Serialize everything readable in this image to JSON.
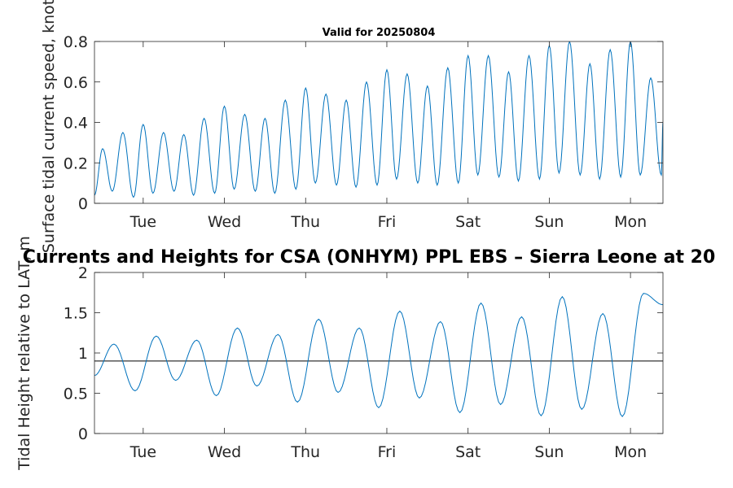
{
  "chart_data": [
    {
      "type": "line",
      "title": "Valid for 20250804",
      "ylabel": "Surface tidal current speed, knots",
      "ylim": [
        0,
        0.8
      ],
      "yticks": [
        0,
        0.2,
        0.4,
        0.6,
        0.8
      ],
      "ytick_labels": [
        "0",
        "0.2",
        "0.4",
        "0.6",
        "0.8"
      ],
      "xlim_days": [
        0,
        7
      ],
      "xtick_labels": [
        "Tue",
        "Wed",
        "Thu",
        "Fri",
        "Sat",
        "Sun",
        "Mon"
      ],
      "series": [
        {
          "color": "#0072BD",
          "x_days": [
            0.0,
            0.1,
            0.22,
            0.35,
            0.48,
            0.6,
            0.72,
            0.85,
            0.98,
            1.1,
            1.22,
            1.35,
            1.48,
            1.6,
            1.72,
            1.85,
            1.98,
            2.1,
            2.22,
            2.35,
            2.48,
            2.6,
            2.72,
            2.85,
            2.98,
            3.1,
            3.22,
            3.35,
            3.48,
            3.6,
            3.72,
            3.85,
            3.98,
            4.1,
            4.22,
            4.35,
            4.48,
            4.6,
            4.72,
            4.85,
            4.98,
            5.1,
            5.22,
            5.35,
            5.48,
            5.6,
            5.72,
            5.85,
            5.98,
            6.1,
            6.22,
            6.35,
            6.48,
            6.6,
            6.72,
            6.85,
            6.98,
            7.0
          ],
          "values": [
            0.04,
            0.27,
            0.06,
            0.35,
            0.03,
            0.39,
            0.05,
            0.35,
            0.06,
            0.34,
            0.04,
            0.42,
            0.05,
            0.48,
            0.07,
            0.44,
            0.06,
            0.42,
            0.05,
            0.51,
            0.07,
            0.57,
            0.1,
            0.54,
            0.09,
            0.51,
            0.08,
            0.6,
            0.09,
            0.66,
            0.12,
            0.64,
            0.1,
            0.58,
            0.09,
            0.67,
            0.1,
            0.73,
            0.14,
            0.73,
            0.13,
            0.65,
            0.11,
            0.73,
            0.12,
            0.78,
            0.15,
            0.8,
            0.14,
            0.69,
            0.12,
            0.76,
            0.13,
            0.8,
            0.14,
            0.62,
            0.14,
            0.4
          ]
        }
      ]
    },
    {
      "type": "line",
      "title": "Currents and Heights for CSA (ONHYM) PPL EBS  – Sierra Leone at 20",
      "ylabel": "Tidal Height relative to LAT, m",
      "ylim": [
        0,
        2
      ],
      "yticks": [
        0,
        0.5,
        1,
        1.5,
        2
      ],
      "ytick_labels": [
        "0",
        "0.5",
        "1",
        "1.5",
        "2"
      ],
      "xlim_days": [
        0,
        7
      ],
      "xtick_labels": [
        "Tue",
        "Wed",
        "Thu",
        "Fri",
        "Sat",
        "Sun",
        "Mon"
      ],
      "reference_line": 0.9,
      "series": [
        {
          "color": "#0072BD",
          "x_days": [
            0.0,
            0.24,
            0.5,
            0.76,
            1.0,
            1.26,
            1.5,
            1.76,
            2.0,
            2.26,
            2.5,
            2.76,
            3.0,
            3.26,
            3.5,
            3.76,
            4.0,
            4.26,
            4.5,
            4.76,
            5.0,
            5.26,
            5.5,
            5.76,
            6.0,
            6.26,
            6.5,
            6.76,
            7.0
          ],
          "values": [
            0.72,
            1.11,
            0.53,
            1.21,
            0.66,
            1.16,
            0.47,
            1.31,
            0.59,
            1.23,
            0.39,
            1.42,
            0.51,
            1.31,
            0.32,
            1.52,
            0.44,
            1.39,
            0.26,
            1.62,
            0.36,
            1.45,
            0.22,
            1.7,
            0.3,
            1.49,
            0.21,
            1.74,
            1.6
          ]
        }
      ]
    }
  ]
}
